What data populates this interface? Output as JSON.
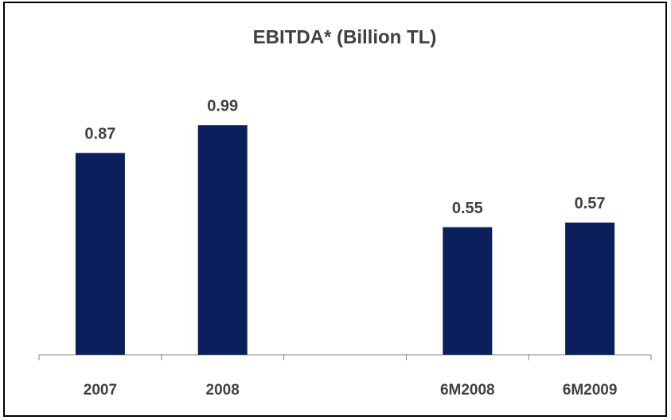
{
  "chart_data": {
    "type": "bar",
    "title": "EBITDA* (Billion TL)",
    "categories": [
      "2007",
      "2008",
      null,
      "6M2008",
      "6M2009"
    ],
    "values": [
      0.87,
      0.99,
      null,
      0.55,
      0.57
    ],
    "color": "#0b1f5c",
    "ylim": [
      0,
      1.2
    ]
  }
}
